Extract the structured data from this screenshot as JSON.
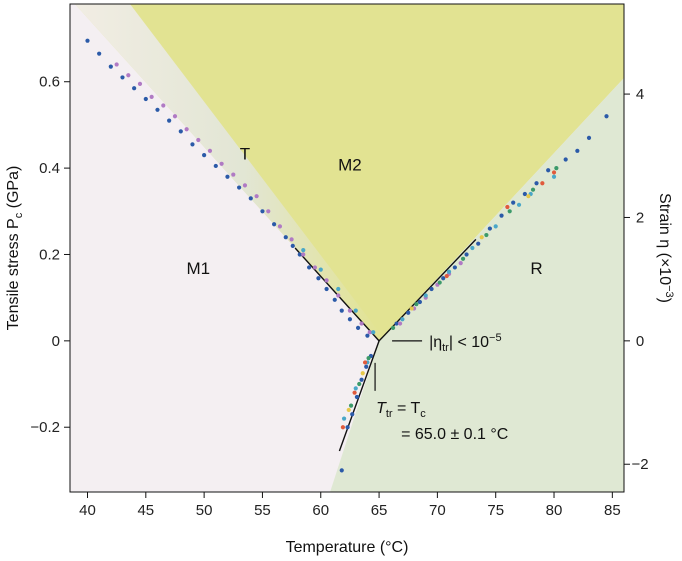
{
  "chart_data": {
    "type": "scatter",
    "title": "",
    "xlabel": "Temperature (°C)",
    "ylabel": "Tensile stress P",
    "ylabel_sub": "c",
    "ylabel_unit": " (GPa)",
    "y2label": "Strain η (×10",
    "y2label_sup": "−3",
    "y2label_end": ")",
    "xlim": [
      38.5,
      86
    ],
    "ylim": [
      -0.35,
      0.78
    ],
    "xticks": [
      40,
      45,
      50,
      55,
      60,
      65,
      70,
      75,
      80,
      85
    ],
    "xtick_labels": [
      "40",
      "45",
      "50",
      "55",
      "60",
      "65",
      "70",
      "75",
      "80",
      "85"
    ],
    "yticks": [
      -0.2,
      0,
      0.2,
      0.4,
      0.6
    ],
    "ytick_labels": [
      "−0.2",
      "0",
      "0.2",
      "0.4",
      "0.6"
    ],
    "y2ticks": [
      -2,
      0,
      2,
      4
    ],
    "y2tick_labels": [
      "−2",
      "0",
      "2",
      "4"
    ],
    "y2_per_gpa": 7.0,
    "regions": [
      {
        "name": "M1",
        "label": "M1",
        "x": 49.5,
        "y": 0.155
      },
      {
        "name": "T",
        "label": "T",
        "x": 53.5,
        "y": 0.42
      },
      {
        "name": "M2",
        "label": "M2",
        "x": 62.5,
        "y": 0.395
      },
      {
        "name": "R",
        "label": "R",
        "x": 78.5,
        "y": 0.155
      }
    ],
    "region_colors": {
      "M1": "#f4eff2",
      "M2": "#e2e392",
      "R": "#dfe8d3"
    },
    "triple_point": {
      "x": 65.0,
      "y": 0.0
    },
    "annotations": {
      "eta_prefix": "|η",
      "eta_sub": "tr",
      "eta_suffix": "| < 10",
      "eta_sup": "−5",
      "ttr_T": "T",
      "ttr_sub": "tr",
      "ttr_eq": " = T",
      "ttr_sub2": "c",
      "ttr_value": "= 65.0 ± 0.1 °C"
    },
    "boundaries": [
      {
        "name": "M1-M2",
        "points": [
          [
            57.8,
            0.215
          ],
          [
            65.0,
            0.0
          ]
        ]
      },
      {
        "name": "M1-R",
        "points": [
          [
            65.0,
            0.0
          ],
          [
            61.6,
            -0.255
          ]
        ]
      },
      {
        "name": "M2-R",
        "points": [
          [
            65.0,
            0.0
          ],
          [
            73.3,
            0.235
          ]
        ]
      }
    ],
    "series": [
      {
        "name": "",
        "color": "#2b5aa8",
        "values": [
          [
            40.0,
            0.695
          ],
          [
            41.0,
            0.665
          ],
          [
            42.0,
            0.635
          ],
          [
            43.0,
            0.61
          ],
          [
            44.0,
            0.585
          ],
          [
            45.0,
            0.56
          ],
          [
            46.0,
            0.535
          ],
          [
            47.0,
            0.51
          ],
          [
            48.0,
            0.485
          ],
          [
            49.0,
            0.455
          ],
          [
            50.0,
            0.43
          ],
          [
            51.0,
            0.405
          ],
          [
            52.0,
            0.38
          ],
          [
            53.0,
            0.355
          ],
          [
            54.0,
            0.33
          ],
          [
            55.0,
            0.3
          ],
          [
            56.0,
            0.27
          ],
          [
            57.0,
            0.24
          ],
          [
            57.6,
            0.22
          ],
          [
            58.2,
            0.2
          ],
          [
            59.0,
            0.17
          ],
          [
            59.8,
            0.145
          ],
          [
            60.5,
            0.12
          ],
          [
            61.2,
            0.095
          ],
          [
            61.8,
            0.07
          ],
          [
            62.5,
            0.05
          ],
          [
            63.2,
            0.03
          ],
          [
            64.0,
            0.012
          ],
          [
            62.3,
            -0.2
          ],
          [
            62.7,
            -0.17
          ],
          [
            63.1,
            -0.13
          ],
          [
            63.5,
            -0.09
          ],
          [
            63.9,
            -0.06
          ],
          [
            64.3,
            -0.035
          ],
          [
            66.5,
            0.04
          ],
          [
            67.5,
            0.065
          ],
          [
            68.5,
            0.09
          ],
          [
            69.5,
            0.12
          ],
          [
            70.5,
            0.145
          ],
          [
            71.5,
            0.17
          ],
          [
            72.5,
            0.2
          ],
          [
            73.5,
            0.225
          ],
          [
            74.5,
            0.26
          ],
          [
            75.5,
            0.29
          ],
          [
            76.5,
            0.32
          ],
          [
            77.5,
            0.34
          ],
          [
            78.5,
            0.365
          ],
          [
            79.5,
            0.395
          ],
          [
            81.0,
            0.42
          ],
          [
            82.0,
            0.44
          ],
          [
            83.0,
            0.47
          ],
          [
            84.5,
            0.52
          ],
          [
            61.8,
            -0.3
          ]
        ]
      },
      {
        "name": "",
        "color": "#b07ac4",
        "values": [
          [
            42.5,
            0.64
          ],
          [
            43.5,
            0.615
          ],
          [
            44.5,
            0.595
          ],
          [
            45.5,
            0.565
          ],
          [
            46.5,
            0.545
          ],
          [
            47.5,
            0.52
          ],
          [
            48.5,
            0.49
          ],
          [
            49.5,
            0.465
          ],
          [
            50.5,
            0.44
          ],
          [
            51.5,
            0.41
          ],
          [
            52.5,
            0.385
          ],
          [
            53.5,
            0.36
          ],
          [
            54.5,
            0.335
          ],
          [
            55.5,
            0.3
          ],
          [
            56.5,
            0.265
          ],
          [
            57.5,
            0.235
          ],
          [
            58.5,
            0.2
          ],
          [
            59.5,
            0.17
          ],
          [
            60.5,
            0.14
          ],
          [
            61.5,
            0.105
          ],
          [
            62.5,
            0.07
          ],
          [
            63.5,
            0.04
          ],
          [
            64.2,
            0.02
          ],
          [
            66.8,
            0.04
          ],
          [
            68.0,
            0.075
          ],
          [
            69.0,
            0.1
          ],
          [
            70.0,
            0.13
          ],
          [
            71.0,
            0.155
          ],
          [
            72.0,
            0.18
          ]
        ]
      },
      {
        "name": "",
        "color": "#4aa7c8",
        "values": [
          [
            58.5,
            0.21
          ],
          [
            60.0,
            0.165
          ],
          [
            61.5,
            0.12
          ],
          [
            63.0,
            0.07
          ],
          [
            64.5,
            0.02
          ],
          [
            62.0,
            -0.18
          ],
          [
            63.0,
            -0.11
          ],
          [
            64.0,
            -0.05
          ],
          [
            67.0,
            0.05
          ],
          [
            69.0,
            0.105
          ],
          [
            71.0,
            0.16
          ],
          [
            73.0,
            0.215
          ],
          [
            75.0,
            0.265
          ],
          [
            77.0,
            0.315
          ],
          [
            78.0,
            0.34
          ],
          [
            80.0,
            0.38
          ]
        ]
      },
      {
        "name": "",
        "color": "#3c9a6a",
        "values": [
          [
            62.6,
            -0.15
          ],
          [
            63.3,
            -0.1
          ],
          [
            64.1,
            -0.04
          ],
          [
            66.2,
            0.03
          ],
          [
            68.2,
            0.085
          ],
          [
            70.2,
            0.135
          ],
          [
            72.2,
            0.19
          ],
          [
            74.2,
            0.245
          ],
          [
            76.2,
            0.3
          ],
          [
            78.2,
            0.35
          ],
          [
            80.2,
            0.4
          ]
        ]
      },
      {
        "name": "",
        "color": "#e05a3c",
        "values": [
          [
            61.9,
            -0.2
          ],
          [
            62.9,
            -0.12
          ],
          [
            63.8,
            -0.05
          ],
          [
            70.8,
            0.15
          ],
          [
            76.0,
            0.31
          ],
          [
            79.0,
            0.365
          ],
          [
            80.0,
            0.39
          ]
        ]
      },
      {
        "name": "",
        "color": "#e6c84a",
        "values": [
          [
            62.4,
            -0.16
          ],
          [
            63.6,
            -0.075
          ],
          [
            67.8,
            0.075
          ],
          [
            73.8,
            0.24
          ],
          [
            77.8,
            0.335
          ]
        ]
      }
    ]
  }
}
